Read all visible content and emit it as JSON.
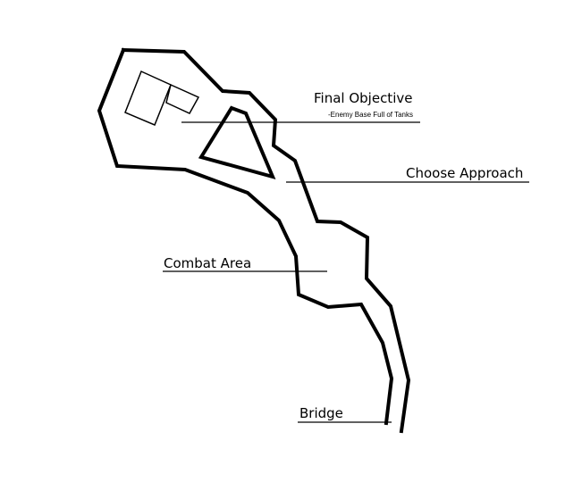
{
  "map": {
    "background": "#ffffff",
    "stroke_color": "#000000",
    "regions": [
      {
        "name": "base-area-outline"
      },
      {
        "name": "central-rock-obstacle"
      },
      {
        "name": "enemy-base-building"
      }
    ]
  },
  "labels": {
    "final_objective": "Final Objective",
    "final_objective_note": "-Enemy Base Full of Tanks",
    "choose_approach": "Choose Approach",
    "combat_area": "Combat Area",
    "bridge": "Bridge"
  }
}
